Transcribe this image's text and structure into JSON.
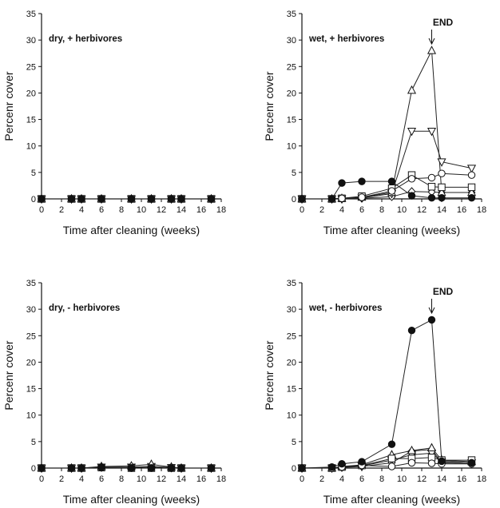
{
  "chart_data": [
    {
      "type": "line",
      "panel_label": "dry, + herbivores",
      "xlabel": "Time after cleaning (weeks)",
      "ylabel": "Percenr cover",
      "xlim": [
        0,
        18
      ],
      "ylim": [
        0,
        35
      ],
      "xticks": [
        "0",
        "2",
        "4",
        "6",
        "8",
        "10",
        "12",
        "14",
        "16",
        "18"
      ],
      "yticks": [
        "0",
        "5",
        "10",
        "15",
        "20",
        "25",
        "30",
        "35"
      ],
      "annotation": "",
      "series": [
        {
          "marker": "filled-circle",
          "x": [
            0,
            3,
            4,
            6,
            9,
            11,
            13,
            14,
            17
          ],
          "y": [
            0,
            0,
            0,
            0,
            0,
            0,
            0,
            0,
            0
          ]
        },
        {
          "marker": "open-circle",
          "x": [
            0,
            3,
            4,
            6,
            9,
            11,
            13,
            14,
            17
          ],
          "y": [
            0,
            0,
            0,
            0,
            0,
            0,
            0,
            0,
            0
          ]
        },
        {
          "marker": "open-square",
          "x": [
            0,
            3,
            4,
            6,
            9,
            11,
            13,
            14,
            17
          ],
          "y": [
            0,
            0,
            0,
            0,
            0,
            0,
            0,
            0,
            0
          ]
        },
        {
          "marker": "open-triangle-up",
          "x": [
            0,
            3,
            4,
            6,
            9,
            11,
            13,
            14,
            17
          ],
          "y": [
            0,
            0,
            0,
            0,
            0,
            0,
            0,
            0,
            0
          ]
        },
        {
          "marker": "open-triangle-down",
          "x": [
            0,
            3,
            4,
            6,
            9,
            11,
            13,
            14,
            17
          ],
          "y": [
            0,
            0,
            0,
            0,
            0,
            0,
            0,
            0,
            0
          ]
        },
        {
          "marker": "open-diamond",
          "x": [
            0,
            3,
            4,
            6,
            9,
            11,
            13,
            14,
            17
          ],
          "y": [
            0,
            0,
            0,
            0,
            0,
            0,
            0,
            0,
            0
          ]
        }
      ]
    },
    {
      "type": "line",
      "panel_label": "wet, + herbivores",
      "xlabel": "Time after cleaning (weeks)",
      "ylabel": "Percenr cover",
      "xlim": [
        0,
        18
      ],
      "ylim": [
        0,
        35
      ],
      "xticks": [
        "0",
        "2",
        "4",
        "6",
        "8",
        "10",
        "12",
        "14",
        "16",
        "18"
      ],
      "yticks": [
        "0",
        "5",
        "10",
        "15",
        "20",
        "25",
        "30",
        "35"
      ],
      "annotation": "END",
      "annotation_x": 13,
      "series": [
        {
          "marker": "filled-circle",
          "x": [
            0,
            3,
            4,
            6,
            9,
            11,
            13,
            14,
            17
          ],
          "y": [
            0,
            0,
            3,
            3.3,
            3.3,
            0.6,
            0.2,
            0.2,
            0.2
          ]
        },
        {
          "marker": "open-circle",
          "x": [
            0,
            3,
            4,
            6,
            9,
            11,
            13,
            14,
            17
          ],
          "y": [
            0,
            0,
            0.1,
            0.3,
            1.5,
            3.8,
            4,
            4.8,
            4.5
          ]
        },
        {
          "marker": "open-square",
          "x": [
            0,
            3,
            4,
            6,
            9,
            11,
            13,
            14,
            17
          ],
          "y": [
            0,
            0,
            0.1,
            0.5,
            2,
            4.5,
            2.3,
            2.2,
            2.2
          ]
        },
        {
          "marker": "open-triangle-up",
          "x": [
            0,
            3,
            4,
            6,
            9,
            11,
            13,
            14,
            17
          ],
          "y": [
            0,
            0,
            0.1,
            0.3,
            1.2,
            20.5,
            28,
            1.2,
            1.2
          ]
        },
        {
          "marker": "open-triangle-down",
          "x": [
            0,
            3,
            4,
            6,
            9,
            11,
            13,
            14,
            17
          ],
          "y": [
            0,
            0,
            0,
            0.2,
            1,
            12.8,
            12.8,
            7,
            5.8
          ]
        },
        {
          "marker": "open-diamond",
          "x": [
            0,
            3,
            4,
            6,
            9,
            11,
            13,
            14,
            17
          ],
          "y": [
            0,
            0,
            0,
            0.1,
            0.4,
            1.4,
            1.3,
            1.2,
            1.2
          ]
        }
      ]
    },
    {
      "type": "line",
      "panel_label": "dry, - herbivores",
      "xlabel": "Time after cleaning (weeks)",
      "ylabel": "Percenr cover",
      "xlim": [
        0,
        18
      ],
      "ylim": [
        0,
        35
      ],
      "xticks": [
        "0",
        "2",
        "4",
        "6",
        "8",
        "10",
        "12",
        "14",
        "16",
        "18"
      ],
      "yticks": [
        "0",
        "5",
        "10",
        "15",
        "20",
        "25",
        "30",
        "35"
      ],
      "annotation": "",
      "series": [
        {
          "marker": "filled-circle",
          "x": [
            0,
            3,
            4,
            6,
            9,
            11,
            13,
            14,
            17
          ],
          "y": [
            0,
            0,
            0,
            0.2,
            0,
            0,
            0,
            0,
            0
          ]
        },
        {
          "marker": "open-circle",
          "x": [
            0,
            3,
            4,
            6,
            9,
            11,
            13,
            14,
            17
          ],
          "y": [
            0,
            0,
            0,
            0.1,
            0,
            0,
            0,
            0,
            0
          ]
        },
        {
          "marker": "open-square",
          "x": [
            0,
            3,
            4,
            6,
            9,
            11,
            13,
            14,
            17
          ],
          "y": [
            0,
            0,
            0,
            0.1,
            0,
            0,
            0,
            0,
            0
          ]
        },
        {
          "marker": "open-triangle-up",
          "x": [
            0,
            3,
            4,
            6,
            9,
            11,
            13,
            14,
            17
          ],
          "y": [
            0,
            0,
            0,
            0.3,
            0.4,
            0.7,
            0.2,
            0,
            0
          ]
        },
        {
          "marker": "open-triangle-down",
          "x": [
            0,
            3,
            4,
            6,
            9,
            11,
            13,
            14,
            17
          ],
          "y": [
            0,
            0,
            0,
            0.2,
            0.2,
            0.3,
            0.1,
            0,
            0
          ]
        },
        {
          "marker": "open-diamond",
          "x": [
            0,
            3,
            4,
            6,
            9,
            11,
            13,
            14,
            17
          ],
          "y": [
            0,
            0,
            0,
            0.1,
            0.1,
            0.2,
            0.1,
            0,
            0
          ]
        }
      ]
    },
    {
      "type": "line",
      "panel_label": "wet, - herbivores",
      "xlabel": "Time after cleaning (weeks)",
      "ylabel": "Percenr cover",
      "xlim": [
        0,
        18
      ],
      "ylim": [
        0,
        35
      ],
      "xticks": [
        "0",
        "2",
        "4",
        "6",
        "8",
        "10",
        "12",
        "14",
        "16",
        "18"
      ],
      "yticks": [
        "0",
        "5",
        "10",
        "15",
        "20",
        "25",
        "30",
        "35"
      ],
      "annotation": "END",
      "annotation_x": 13,
      "series": [
        {
          "marker": "filled-circle",
          "x": [
            0,
            3,
            4,
            6,
            9,
            11,
            13,
            14,
            17
          ],
          "y": [
            0,
            0.2,
            0.8,
            1.2,
            4.5,
            26,
            28,
            1.3,
            1
          ]
        },
        {
          "marker": "open-circle",
          "x": [
            0,
            3,
            4,
            6,
            9,
            11,
            13,
            14,
            17
          ],
          "y": [
            0,
            0,
            0.2,
            0.5,
            0.3,
            1,
            0.9,
            0.8,
            0.8
          ]
        },
        {
          "marker": "open-square",
          "x": [
            0,
            3,
            4,
            6,
            9,
            11,
            13,
            14,
            17
          ],
          "y": [
            0,
            0,
            0.2,
            0.5,
            1.8,
            1.8,
            2,
            1.5,
            1.5
          ]
        },
        {
          "marker": "open-triangle-up",
          "x": [
            0,
            3,
            4,
            6,
            9,
            11,
            13,
            14,
            17
          ],
          "y": [
            0,
            0,
            0.3,
            0.6,
            2.5,
            3.3,
            3.8,
            1.5,
            1.2
          ]
        },
        {
          "marker": "open-triangle-down",
          "x": [
            0,
            3,
            4,
            6,
            9,
            11,
            13,
            14,
            17
          ],
          "y": [
            0,
            0,
            0.2,
            0.4,
            1.5,
            2.5,
            2.8,
            1.2,
            1
          ]
        },
        {
          "marker": "open-diamond",
          "x": [
            0,
            3,
            4,
            6,
            9,
            11,
            13,
            14,
            17
          ],
          "y": [
            0,
            0,
            0.1,
            0.3,
            1,
            3.2,
            3.5,
            1,
            0.8
          ]
        }
      ]
    }
  ]
}
